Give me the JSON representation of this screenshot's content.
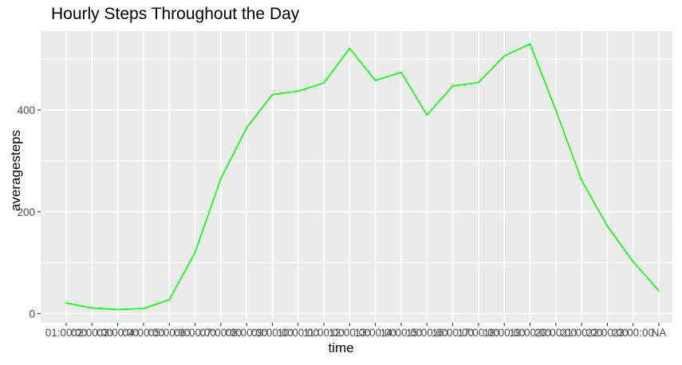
{
  "chart_data": {
    "type": "line",
    "title": "Hourly Steps Throughout the Day",
    "xlabel": "time",
    "ylabel": "averagesteps",
    "categories": [
      "01:00:00",
      "02:00:00",
      "03:00:00",
      "04:00:00",
      "05:00:00",
      "06:00:00",
      "07:00:00",
      "08:00:00",
      "09:00:00",
      "10:00:00",
      "11:00:00",
      "12:00:00",
      "13:00:00",
      "14:00:00",
      "15:00:00",
      "16:00:00",
      "17:00:00",
      "18:00:00",
      "19:00:00",
      "20:00:00",
      "21:00:00",
      "22:00:00",
      "23:00:00",
      "NA"
    ],
    "series": [
      {
        "values": [
          21,
          11,
          8,
          10,
          27,
          120,
          265,
          365,
          430,
          437,
          453,
          521,
          458,
          474,
          390,
          447,
          454,
          506,
          530,
          400,
          262,
          172,
          102,
          45
        ]
      }
    ],
    "ylim": [
      -18,
      555
    ],
    "yticks": [
      0,
      200,
      400
    ],
    "ytick_labels": [
      "0",
      "200",
      "400"
    ],
    "grid": true,
    "legend": "none",
    "colors": {
      "line": "#00ff00",
      "panel": "#ebebeb",
      "grid": "#ffffff",
      "tick_text": "#4d4d4d"
    }
  }
}
